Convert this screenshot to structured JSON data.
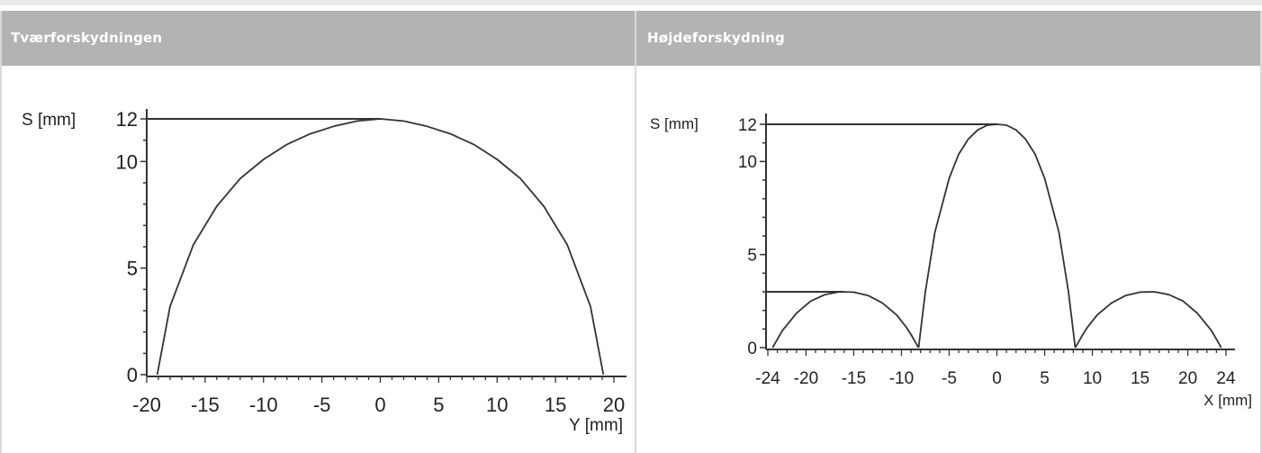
{
  "panels": [
    {
      "header": "Tværforskydningen",
      "chart_data": {
        "type": "line",
        "ylabel": "S  [mm]",
        "xlabel": "Y [mm]",
        "ylim": [
          0,
          12
        ],
        "xlim": [
          -20,
          20
        ],
        "yticks": [
          0,
          5,
          10,
          12
        ],
        "xticks": [
          -20,
          -15,
          -10,
          -5,
          0,
          5,
          10,
          15,
          20
        ],
        "reference_lines": [
          {
            "y": 12,
            "x_from": -20,
            "x_to": 0
          }
        ],
        "series": [
          {
            "x": [
              -19.1,
              -18,
              -16,
              -14,
              -12,
              -10,
              -8,
              -6,
              -4,
              -2,
              0,
              2,
              4,
              6,
              8,
              10,
              12,
              14,
              16,
              18,
              19.1
            ],
            "y": [
              0,
              3.2,
              6.1,
              7.9,
              9.2,
              10.1,
              10.8,
              11.3,
              11.65,
              11.9,
              12,
              11.9,
              11.65,
              11.3,
              10.8,
              10.1,
              9.2,
              7.9,
              6.1,
              3.2,
              0
            ]
          }
        ]
      }
    },
    {
      "header": "Højdeforskydning",
      "chart_data": {
        "type": "line",
        "ylabel": "S  [mm]",
        "xlabel": "X [mm]",
        "ylim": [
          0,
          12
        ],
        "xlim": [
          -24,
          24
        ],
        "yticks": [
          0,
          5,
          10,
          12
        ],
        "xticks": [
          -24,
          -20,
          -15,
          -10,
          -5,
          0,
          5,
          10,
          15,
          20,
          24
        ],
        "reference_lines": [
          {
            "y": 12,
            "x_from": -24,
            "x_to": 0
          },
          {
            "y": 3,
            "x_from": -24,
            "x_to": -16
          }
        ],
        "series": [
          {
            "x": [
              -23.5,
              -22.5,
              -21,
              -19.5,
              -18,
              -16.5,
              -15,
              -13.5,
              -12,
              -10.5,
              -9.5,
              -9,
              -8.5,
              -8.2
            ],
            "y": [
              0,
              0.9,
              1.85,
              2.5,
              2.85,
              3.0,
              2.98,
              2.8,
              2.4,
              1.75,
              1.1,
              0.7,
              0.25,
              0
            ]
          },
          {
            "x": [
              -8.2,
              -7.5,
              -6.5,
              -5,
              -4,
              -3,
              -2,
              -1,
              0,
              1,
              2,
              3,
              4,
              5,
              6.5,
              7.5,
              8.2
            ],
            "y": [
              0,
              3.0,
              6.2,
              9.1,
              10.4,
              11.2,
              11.7,
              11.95,
              12,
              11.95,
              11.7,
              11.2,
              10.4,
              9.1,
              6.2,
              3.0,
              0
            ]
          },
          {
            "x": [
              8.2,
              8.5,
              9,
              9.5,
              10.5,
              12,
              13.5,
              15,
              16.5,
              18,
              19.5,
              21,
              22.5,
              23.5
            ],
            "y": [
              0,
              0.25,
              0.7,
              1.1,
              1.75,
              2.4,
              2.8,
              2.98,
              3.0,
              2.85,
              2.5,
              1.85,
              0.9,
              0
            ]
          }
        ]
      }
    }
  ]
}
